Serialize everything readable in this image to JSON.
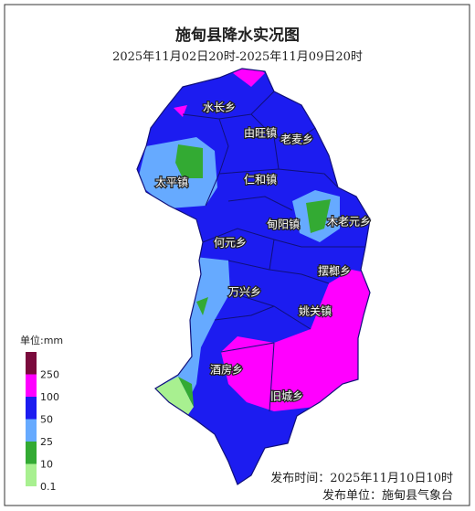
{
  "header": {
    "title": "施甸县降水实况图",
    "subtitle": "2025年11月02日20时-2025年11月09日20时"
  },
  "places": [
    {
      "label": "水长乡"
    },
    {
      "label": "由旺镇"
    },
    {
      "label": "老麦乡"
    },
    {
      "label": "太平镇"
    },
    {
      "label": "仁和镇"
    },
    {
      "label": "甸阳镇"
    },
    {
      "label": "木老元乡"
    },
    {
      "label": "何元乡"
    },
    {
      "label": "摆榔乡"
    },
    {
      "label": "万兴乡"
    },
    {
      "label": "姚关镇"
    },
    {
      "label": "酒房乡"
    },
    {
      "label": "旧城乡"
    }
  ],
  "legend": {
    "unit": "单位:mm",
    "items": [
      {
        "label": "250",
        "color": "#7a0a3c"
      },
      {
        "label": "100",
        "color": "#ff00ff"
      },
      {
        "label": "50",
        "color": "#1c1cf0"
      },
      {
        "label": "25",
        "color": "#66aaff"
      },
      {
        "label": "10",
        "color": "#33aa33"
      },
      {
        "label": "0.1",
        "color": "#a8f090"
      }
    ]
  },
  "footer": {
    "issue_time": "发布时间：2025年11月10日10时",
    "issuer": "发布单位：施甸县气象台"
  }
}
